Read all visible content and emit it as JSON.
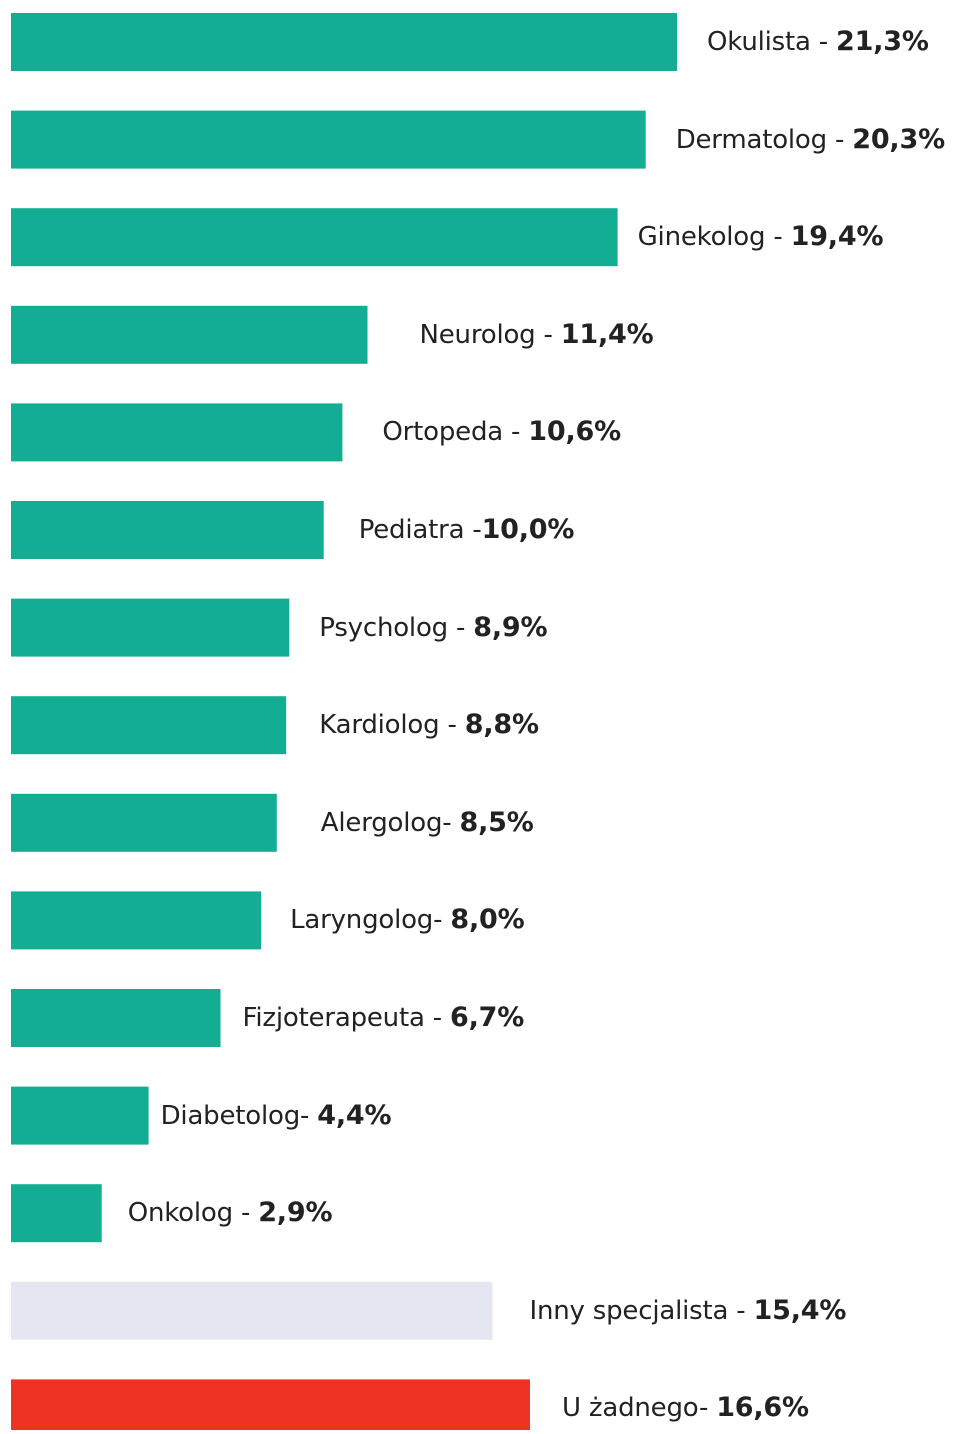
{
  "chart_data": {
    "type": "bar",
    "orientation": "horizontal",
    "categories": [
      "Okulista",
      "Dermatolog",
      "Ginekolog",
      "Neurolog",
      "Ortopeda",
      "Pediatra",
      "Psycholog",
      "Kardiolog",
      "Alergolog",
      "Laryngolog",
      "Fizjoterapeuta",
      "Diabetolog",
      "Onkolog",
      "Inny specjalista",
      "U żadnego"
    ],
    "values": [
      21.3,
      20.3,
      19.4,
      11.4,
      10.6,
      10.0,
      8.9,
      8.8,
      8.5,
      8.0,
      6.7,
      4.4,
      2.9,
      15.4,
      16.6
    ],
    "labels": [
      {
        "name": "Okulista",
        "sep": " - ",
        "value": "21,3%"
      },
      {
        "name": "Dermatolog",
        "sep": " - ",
        "value": "20,3%"
      },
      {
        "name": "Ginekolog",
        "sep": " - ",
        "value": "19,4%"
      },
      {
        "name": "Neurolog",
        "sep": " - ",
        "value": "11,4%"
      },
      {
        "name": "Ortopeda",
        "sep": " - ",
        "value": "10,6%"
      },
      {
        "name": "Pediatra",
        "sep": " -",
        "value": "10,0%"
      },
      {
        "name": "Psycholog",
        "sep": " - ",
        "value": "8,9%"
      },
      {
        "name": "Kardiolog",
        "sep": " - ",
        "value": "8,8%"
      },
      {
        "name": "Alergolog",
        "sep": "- ",
        "value": "8,5%"
      },
      {
        "name": "Laryngolog",
        "sep": "- ",
        "value": "8,0%"
      },
      {
        "name": "Fizjoterapeuta",
        "sep": " - ",
        "value": "6,7%"
      },
      {
        "name": "Diabetolog",
        "sep": "- ",
        "value": "4,4%"
      },
      {
        "name": "Onkolog",
        "sep": " - ",
        "value": "2,9%"
      },
      {
        "name": "Inny specjalista",
        "sep": " - ",
        "value": "15,4%"
      },
      {
        "name": "U żadnego",
        "sep": "- ",
        "value": "16,6%"
      }
    ],
    "colors": [
      "#13ad94",
      "#13ad94",
      "#13ad94",
      "#13ad94",
      "#13ad94",
      "#13ad94",
      "#13ad94",
      "#13ad94",
      "#13ad94",
      "#13ad94",
      "#13ad94",
      "#13ad94",
      "#13ad94",
      "#e4e6f2",
      "#ec3324"
    ],
    "xlim": [
      0,
      21.3
    ],
    "grid": false,
    "legend": "none",
    "title": "",
    "xlabel": "",
    "ylabel": ""
  }
}
